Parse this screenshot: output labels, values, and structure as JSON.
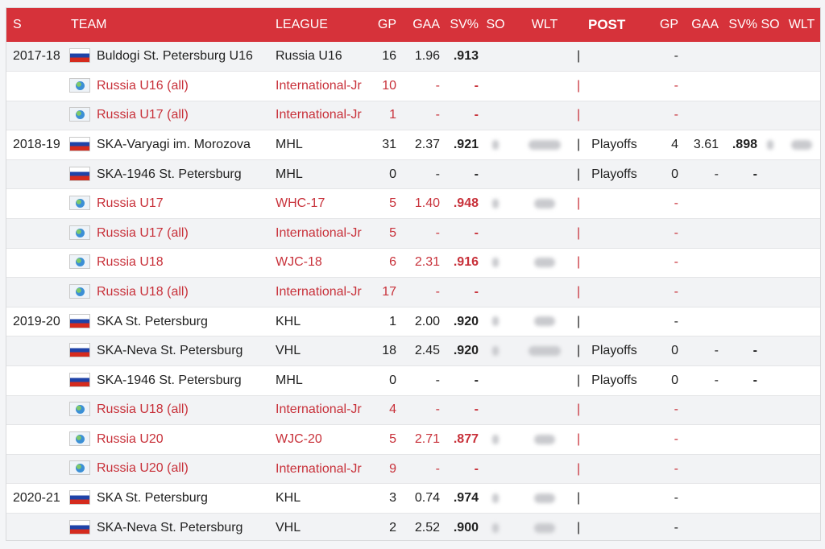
{
  "headers": {
    "s": "S",
    "team": "TEAM",
    "league": "LEAGUE",
    "gp": "GP",
    "gaa": "GAA",
    "sv": "SV%",
    "so": "SO",
    "wlt": "WLT",
    "post": "POST",
    "pgp": "GP",
    "pgaa": "GAA",
    "psv": "SV%",
    "pso": "SO",
    "pwlt": "WLT"
  },
  "colors": {
    "header_bg": "#d6323a",
    "intl_text": "#c8313a"
  },
  "rows": [
    {
      "season": "2017-18",
      "flag": "ru",
      "team": "Buldogi St. Petersburg U16",
      "league": "Russia U16",
      "gp": "16",
      "gaa": "1.96",
      "sv": ".913",
      "blur": false,
      "pipe": "|",
      "post": "",
      "pgp": "-",
      "pgaa": "",
      "psv": "",
      "pblur": false,
      "intl": false
    },
    {
      "season": "",
      "flag": "world",
      "team": "Russia U16 (all)",
      "league": "International-Jr",
      "gp": "10",
      "gaa": "-",
      "sv": "-",
      "blur": false,
      "pipe": "|",
      "post": "",
      "pgp": "-",
      "pgaa": "",
      "psv": "",
      "pblur": false,
      "intl": true
    },
    {
      "season": "",
      "flag": "world",
      "team": "Russia U17 (all)",
      "league": "International-Jr",
      "gp": "1",
      "gaa": "-",
      "sv": "-",
      "blur": false,
      "pipe": "|",
      "post": "",
      "pgp": "-",
      "pgaa": "",
      "psv": "",
      "pblur": false,
      "intl": true
    },
    {
      "season": "2018-19",
      "flag": "ru",
      "team": "SKA-Varyagi im. Morozova",
      "league": "MHL",
      "gp": "31",
      "gaa": "2.37",
      "sv": ".921",
      "blur": true,
      "pipe": "|",
      "post": "Playoffs",
      "pgp": "4",
      "pgaa": "3.61",
      "psv": ".898",
      "pblur": true,
      "intl": false
    },
    {
      "season": "",
      "flag": "ru",
      "team": "SKA-1946 St. Petersburg",
      "league": "MHL",
      "gp": "0",
      "gaa": "-",
      "sv": "-",
      "blur": false,
      "pipe": "|",
      "post": "Playoffs",
      "pgp": "0",
      "pgaa": "-",
      "psv": "-",
      "pblur": false,
      "intl": false
    },
    {
      "season": "",
      "flag": "world",
      "team": "Russia U17",
      "league": "WHC-17",
      "gp": "5",
      "gaa": "1.40",
      "sv": ".948",
      "blur": true,
      "pipe": "|",
      "post": "",
      "pgp": "-",
      "pgaa": "",
      "psv": "",
      "pblur": false,
      "intl": true
    },
    {
      "season": "",
      "flag": "world",
      "team": "Russia U17 (all)",
      "league": "International-Jr",
      "gp": "5",
      "gaa": "-",
      "sv": "-",
      "blur": false,
      "pipe": "|",
      "post": "",
      "pgp": "-",
      "pgaa": "",
      "psv": "",
      "pblur": false,
      "intl": true
    },
    {
      "season": "",
      "flag": "world",
      "team": "Russia U18",
      "league": "WJC-18",
      "gp": "6",
      "gaa": "2.31",
      "sv": ".916",
      "blur": true,
      "pipe": "|",
      "post": "",
      "pgp": "-",
      "pgaa": "",
      "psv": "",
      "pblur": false,
      "intl": true
    },
    {
      "season": "",
      "flag": "world",
      "team": "Russia U18 (all)",
      "league": "International-Jr",
      "gp": "17",
      "gaa": "-",
      "sv": "-",
      "blur": false,
      "pipe": "|",
      "post": "",
      "pgp": "-",
      "pgaa": "",
      "psv": "",
      "pblur": false,
      "intl": true
    },
    {
      "season": "2019-20",
      "flag": "ru",
      "team": "SKA St. Petersburg",
      "league": "KHL",
      "gp": "1",
      "gaa": "2.00",
      "sv": ".920",
      "blur": true,
      "pipe": "|",
      "post": "",
      "pgp": "-",
      "pgaa": "",
      "psv": "",
      "pblur": false,
      "intl": false
    },
    {
      "season": "",
      "flag": "ru",
      "team": "SKA-Neva St. Petersburg",
      "league": "VHL",
      "gp": "18",
      "gaa": "2.45",
      "sv": ".920",
      "blur": true,
      "pipe": "|",
      "post": "Playoffs",
      "pgp": "0",
      "pgaa": "-",
      "psv": "-",
      "pblur": false,
      "intl": false
    },
    {
      "season": "",
      "flag": "ru",
      "team": "SKA-1946 St. Petersburg",
      "league": "MHL",
      "gp": "0",
      "gaa": "-",
      "sv": "-",
      "blur": false,
      "pipe": "|",
      "post": "Playoffs",
      "pgp": "0",
      "pgaa": "-",
      "psv": "-",
      "pblur": false,
      "intl": false
    },
    {
      "season": "",
      "flag": "world",
      "team": "Russia U18 (all)",
      "league": "International-Jr",
      "gp": "4",
      "gaa": "-",
      "sv": "-",
      "blur": false,
      "pipe": "|",
      "post": "",
      "pgp": "-",
      "pgaa": "",
      "psv": "",
      "pblur": false,
      "intl": true
    },
    {
      "season": "",
      "flag": "world",
      "team": "Russia U20",
      "league": "WJC-20",
      "gp": "5",
      "gaa": "2.71",
      "sv": ".877",
      "blur": true,
      "pipe": "|",
      "post": "",
      "pgp": "-",
      "pgaa": "",
      "psv": "",
      "pblur": false,
      "intl": true
    },
    {
      "season": "",
      "flag": "world",
      "team": "Russia U20 (all)",
      "league": "International-Jr",
      "gp": "9",
      "gaa": "-",
      "sv": "-",
      "blur": false,
      "pipe": "|",
      "post": "",
      "pgp": "-",
      "pgaa": "",
      "psv": "",
      "pblur": false,
      "intl": true
    },
    {
      "season": "2020-21",
      "flag": "ru",
      "team": "SKA St. Petersburg",
      "league": "KHL",
      "gp": "3",
      "gaa": "0.74",
      "sv": ".974",
      "blur": true,
      "pipe": "|",
      "post": "",
      "pgp": "-",
      "pgaa": "",
      "psv": "",
      "pblur": false,
      "intl": false
    },
    {
      "season": "",
      "flag": "ru",
      "team": "SKA-Neva St. Petersburg",
      "league": "VHL",
      "gp": "2",
      "gaa": "2.52",
      "sv": ".900",
      "blur": true,
      "pipe": "|",
      "post": "",
      "pgp": "-",
      "pgaa": "",
      "psv": "",
      "pblur": false,
      "intl": false
    }
  ]
}
